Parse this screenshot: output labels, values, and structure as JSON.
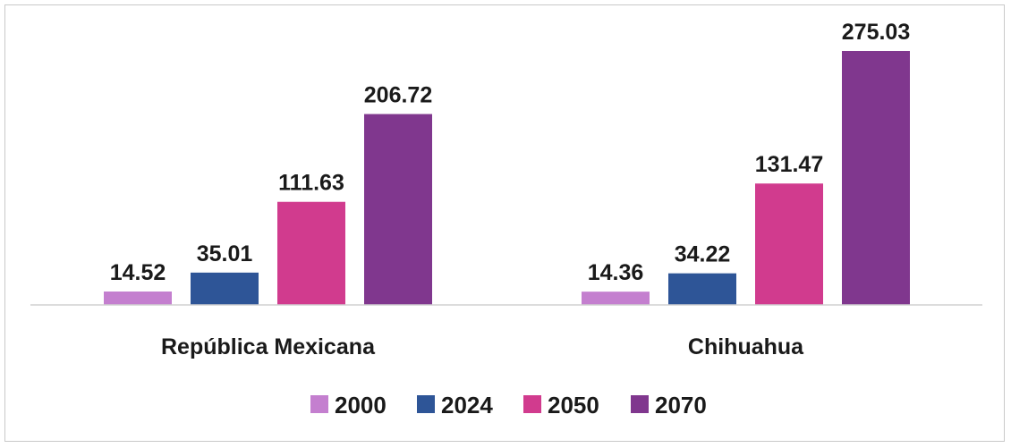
{
  "chart_data": {
    "type": "bar",
    "title": "",
    "xlabel": "",
    "ylabel": "",
    "categories": [
      "República Mexicana",
      "Chihuahua"
    ],
    "series": [
      {
        "name": "2000",
        "values": [
          14.52,
          14.36
        ],
        "color": "#c47fcf"
      },
      {
        "name": "2024",
        "values": [
          35.01,
          34.22
        ],
        "color": "#2e5597"
      },
      {
        "name": "2050",
        "values": [
          111.63,
          131.47
        ],
        "color": "#d13b8e"
      },
      {
        "name": "2070",
        "values": [
          206.72,
          275.03
        ],
        "color": "#80378e"
      }
    ],
    "ylim": [
      0,
      275.03
    ],
    "grid": false,
    "data_labels": true,
    "legend_position": "bottom"
  }
}
